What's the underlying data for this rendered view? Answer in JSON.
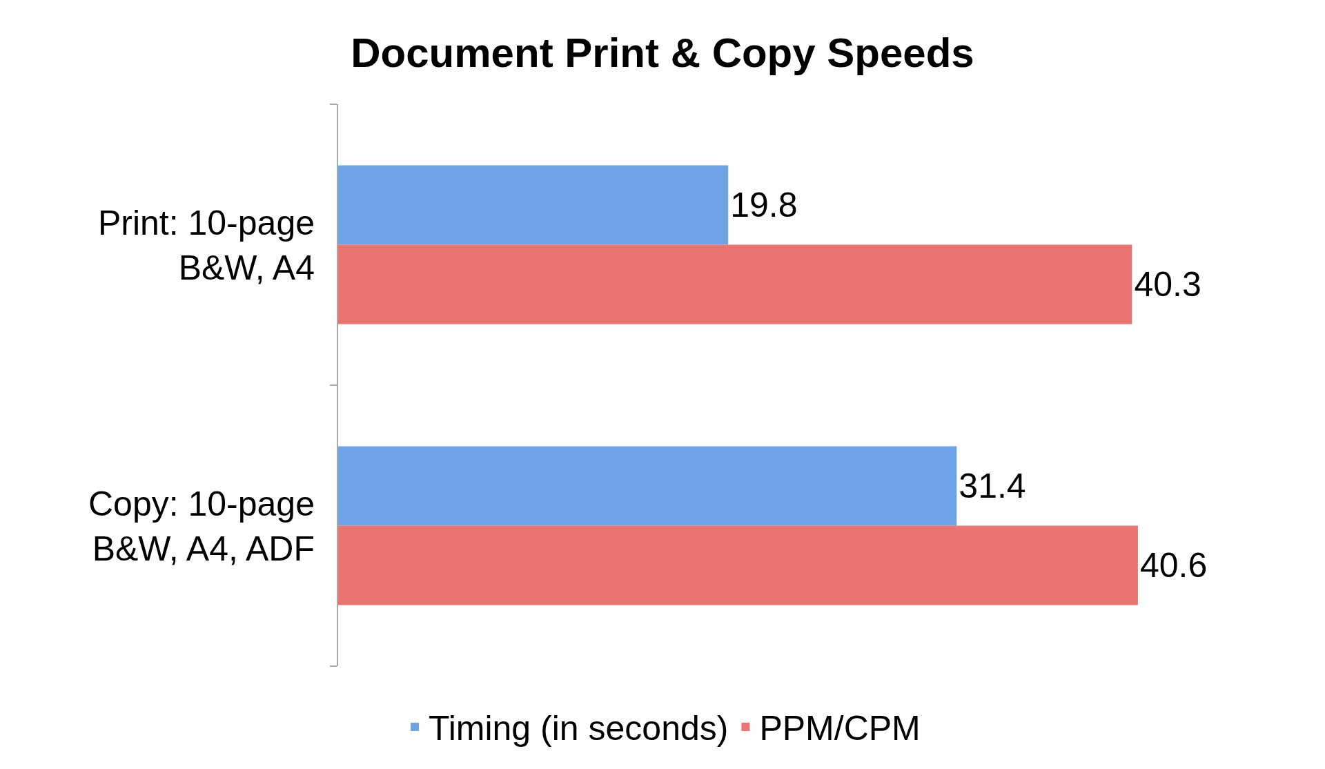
{
  "chart_data": {
    "type": "bar",
    "orientation": "horizontal",
    "title": "Document Print & Copy Speeds",
    "categories": [
      "Print: 10-page B&W, A4",
      "Copy: 10-page B&W, A4, ADF"
    ],
    "series": [
      {
        "name": "Timing (in seconds)",
        "color": "#6ea4e6",
        "values": [
          19.8,
          31.4
        ]
      },
      {
        "name": "PPM/CPM",
        "color": "#ea7470",
        "values": [
          40.3,
          40.6
        ]
      }
    ],
    "data_labels": true,
    "legend": "bottom",
    "tick_labels": "y"
  }
}
